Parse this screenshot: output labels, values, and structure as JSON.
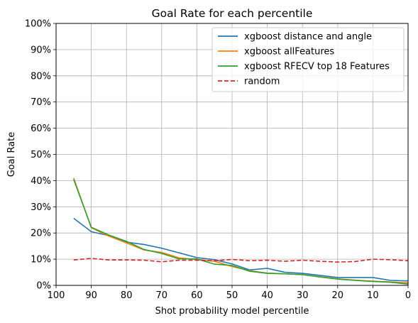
{
  "chart_data": {
    "type": "line",
    "title": "Goal Rate for each percentile",
    "xlabel": "Shot probability model percentile",
    "ylabel": "Goal Rate",
    "xlim": [
      100,
      0
    ],
    "ylim": [
      0,
      1
    ],
    "x_ticks": [
      100,
      90,
      80,
      70,
      60,
      50,
      40,
      30,
      20,
      10,
      0
    ],
    "x_tick_labels": [
      "100",
      "90",
      "80",
      "70",
      "60",
      "50",
      "40",
      "30",
      "20",
      "10",
      "0"
    ],
    "y_ticks": [
      0,
      0.1,
      0.2,
      0.3,
      0.4,
      0.5,
      0.6,
      0.7,
      0.8,
      0.9,
      1.0
    ],
    "y_tick_labels": [
      "0%",
      "10%",
      "20%",
      "30%",
      "40%",
      "50%",
      "60%",
      "70%",
      "80%",
      "90%",
      "100%"
    ],
    "grid": true,
    "legend_position": "top-right",
    "x": [
      95,
      90,
      85,
      80,
      75,
      70,
      65,
      60,
      55,
      50,
      45,
      40,
      35,
      30,
      25,
      20,
      15,
      10,
      5,
      0
    ],
    "series": [
      {
        "name": "xgboost distance and angle",
        "color": "#1f77b4",
        "style": "solid",
        "values": [
          0.256,
          0.205,
          0.19,
          0.165,
          0.156,
          0.142,
          0.124,
          0.106,
          0.098,
          0.082,
          0.059,
          0.065,
          0.05,
          0.046,
          0.038,
          0.03,
          0.03,
          0.03,
          0.019,
          0.017
        ]
      },
      {
        "name": "xgboost allFeatures",
        "color": "#ff7f0e",
        "style": "solid",
        "values": [
          0.41,
          0.22,
          0.188,
          0.162,
          0.135,
          0.126,
          0.105,
          0.098,
          0.092,
          0.072,
          0.056,
          0.047,
          0.044,
          0.041,
          0.033,
          0.025,
          0.02,
          0.016,
          0.013,
          0.01
        ]
      },
      {
        "name": "xgboost RFECV top 18 Features",
        "color": "#2ca02c",
        "style": "solid",
        "values": [
          0.405,
          0.222,
          0.192,
          0.168,
          0.137,
          0.122,
          0.101,
          0.101,
          0.081,
          0.076,
          0.054,
          0.046,
          0.044,
          0.041,
          0.032,
          0.024,
          0.019,
          0.015,
          0.012,
          0.005
        ]
      },
      {
        "name": "random",
        "color": "#d62728",
        "style": "dashed",
        "values": [
          0.097,
          0.103,
          0.097,
          0.097,
          0.096,
          0.09,
          0.096,
          0.096,
          0.094,
          0.099,
          0.094,
          0.096,
          0.092,
          0.096,
          0.092,
          0.089,
          0.091,
          0.1,
          0.098,
          0.094
        ]
      }
    ]
  }
}
